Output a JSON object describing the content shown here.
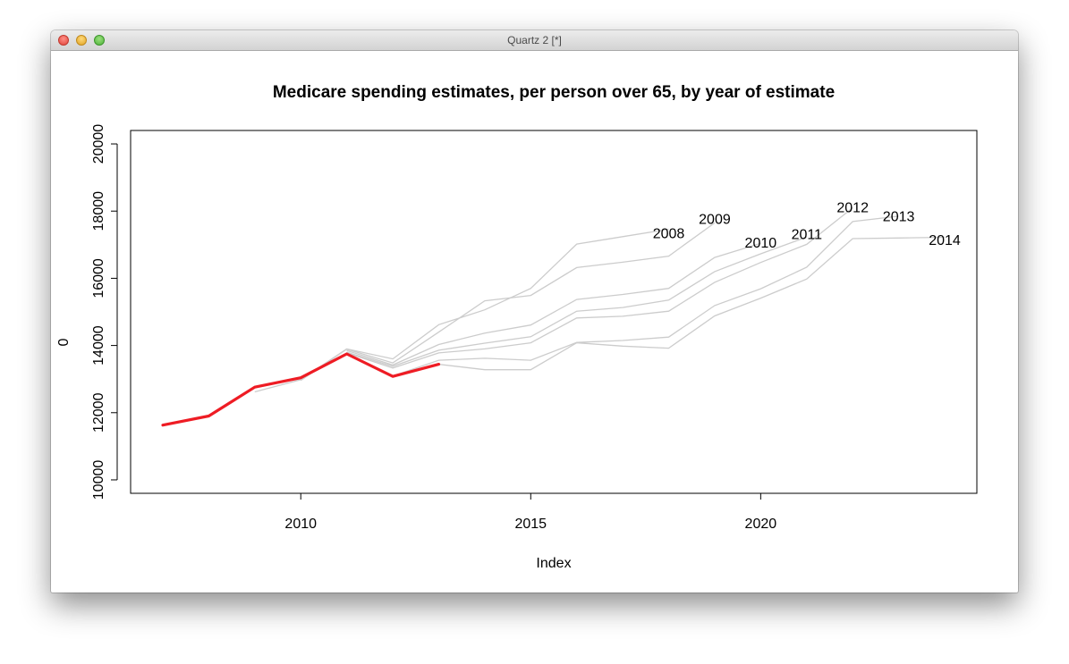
{
  "window": {
    "title": "Quartz 2 [*]"
  },
  "chart_data": {
    "type": "line",
    "title": "Medicare spending estimates, per person over 65, by year of estimate",
    "xlabel": "Index",
    "ylabel": "0",
    "xlim": [
      2006.3,
      2024.7
    ],
    "ylim": [
      9600,
      20400
    ],
    "xticks": [
      2010,
      2015,
      2020
    ],
    "yticks": [
      10000,
      12000,
      14000,
      16000,
      18000,
      20000
    ],
    "grid": false,
    "highlight_color": "#ee1c24",
    "estimate_color": "#cccccc",
    "actual": {
      "x": [
        2007,
        2008,
        2009,
        2010,
        2011,
        2012,
        2013
      ],
      "values": [
        11630,
        11900,
        12760,
        13040,
        13750,
        13080,
        13440
      ]
    },
    "series": [
      {
        "name": "2008",
        "x": [
          2009,
          2010,
          2011,
          2012,
          2013,
          2014,
          2015,
          2016,
          2017,
          2018
        ],
        "values": [
          12620,
          12980,
          13900,
          13600,
          14620,
          15060,
          15700,
          17020,
          17240,
          17460
        ]
      },
      {
        "name": "2009",
        "x": [
          2010,
          2011,
          2012,
          2013,
          2014,
          2015,
          2016,
          2017,
          2018,
          2019
        ],
        "values": [
          12960,
          13890,
          13480,
          14400,
          15330,
          15490,
          16320,
          16480,
          16660,
          17650
        ]
      },
      {
        "name": "2010",
        "x": [
          2011,
          2012,
          2013,
          2014,
          2015,
          2016,
          2017,
          2018,
          2019,
          2020
        ],
        "values": [
          13850,
          13420,
          14030,
          14370,
          14610,
          15370,
          15520,
          15700,
          16620,
          17040
        ]
      },
      {
        "name": "2011",
        "x": [
          2011,
          2012,
          2013,
          2014,
          2015,
          2016,
          2017,
          2018,
          2019,
          2020,
          2021
        ],
        "values": [
          13800,
          13380,
          13860,
          14070,
          14260,
          15020,
          15130,
          15350,
          16200,
          16730,
          17230
        ]
      },
      {
        "name": "2012",
        "x": [
          2011,
          2012,
          2013,
          2014,
          2015,
          2016,
          2017,
          2018,
          2019,
          2020,
          2021,
          2022
        ],
        "values": [
          13780,
          13330,
          13780,
          13900,
          14080,
          14820,
          14870,
          15020,
          15880,
          16470,
          17010,
          18100
        ]
      },
      {
        "name": "2013",
        "x": [
          2012,
          2013,
          2014,
          2015,
          2016,
          2017,
          2018,
          2019,
          2020,
          2021,
          2022,
          2023
        ],
        "values": [
          13090,
          13560,
          13620,
          13560,
          14090,
          14150,
          14250,
          15190,
          15690,
          16330,
          17690,
          17850
        ]
      },
      {
        "name": "2014",
        "x": [
          2013,
          2014,
          2015,
          2016,
          2017,
          2018,
          2019,
          2020,
          2021,
          2022,
          2023,
          2024
        ],
        "values": [
          13440,
          13280,
          13280,
          14080,
          13980,
          13920,
          14880,
          15410,
          15980,
          17180,
          17200,
          17220
        ]
      }
    ],
    "annotations": [
      {
        "text": "2008",
        "x": 2018.0,
        "y": 17350
      },
      {
        "text": "2009",
        "x": 2019.0,
        "y": 17780
      },
      {
        "text": "2010",
        "x": 2020.0,
        "y": 17080
      },
      {
        "text": "2011",
        "x": 2021.0,
        "y": 17330
      },
      {
        "text": "2012",
        "x": 2022.0,
        "y": 18130
      },
      {
        "text": "2013",
        "x": 2023.0,
        "y": 17860
      },
      {
        "text": "2014",
        "x": 2024.0,
        "y": 17150
      }
    ]
  }
}
